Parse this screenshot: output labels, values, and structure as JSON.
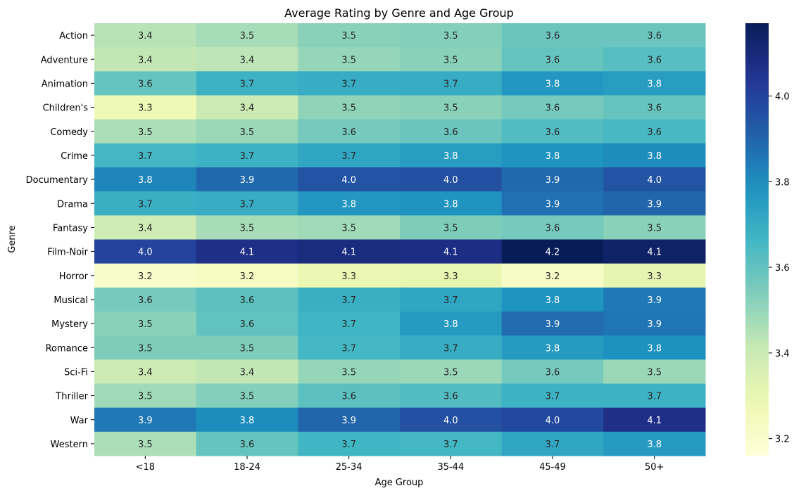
{
  "chart_data": {
    "type": "heatmap",
    "title": "Average Rating by Genre and Age Group",
    "xlabel": "Age Group",
    "ylabel": "Genre",
    "colormap": "YlGnBu",
    "x_categories": [
      "<18",
      "18-24",
      "25-34",
      "35-44",
      "45-49",
      "50+"
    ],
    "y_categories": [
      "Action",
      "Adventure",
      "Animation",
      "Children's",
      "Comedy",
      "Crime",
      "Documentary",
      "Drama",
      "Fantasy",
      "Film-Noir",
      "Horror",
      "Musical",
      "Mystery",
      "Romance",
      "Sci-Fi",
      "Thriller",
      "War",
      "Western"
    ],
    "values": [
      [
        3.44,
        3.47,
        3.52,
        3.53,
        3.58,
        3.58
      ],
      [
        3.42,
        3.43,
        3.5,
        3.52,
        3.59,
        3.62
      ],
      [
        3.59,
        3.68,
        3.7,
        3.7,
        3.77,
        3.75
      ],
      [
        3.27,
        3.4,
        3.51,
        3.52,
        3.56,
        3.59
      ],
      [
        3.46,
        3.49,
        3.56,
        3.58,
        3.63,
        3.65
      ],
      [
        3.66,
        3.68,
        3.72,
        3.75,
        3.78,
        3.8
      ],
      [
        3.82,
        3.89,
        3.95,
        3.96,
        3.89,
        3.95
      ],
      [
        3.69,
        3.7,
        3.77,
        3.78,
        3.87,
        3.9
      ],
      [
        3.39,
        3.47,
        3.48,
        3.54,
        3.56,
        3.52
      ],
      [
        4.0,
        4.07,
        4.09,
        4.08,
        4.17,
        4.14
      ],
      [
        3.21,
        3.23,
        3.29,
        3.3,
        3.22,
        3.31
      ],
      [
        3.56,
        3.61,
        3.69,
        3.72,
        3.78,
        3.85
      ],
      [
        3.52,
        3.6,
        3.67,
        3.76,
        3.88,
        3.86
      ],
      [
        3.54,
        3.54,
        3.66,
        3.7,
        3.76,
        3.79
      ],
      [
        3.4,
        3.42,
        3.5,
        3.49,
        3.56,
        3.49
      ],
      [
        3.48,
        3.53,
        3.61,
        3.63,
        3.68,
        3.68
      ],
      [
        3.85,
        3.8,
        3.9,
        3.96,
        3.98,
        4.07
      ],
      [
        3.46,
        3.59,
        3.67,
        3.66,
        3.72,
        3.76
      ]
    ],
    "value_range": [
      3.16,
      4.17
    ],
    "colorbar_ticks": [
      3.2,
      3.4,
      3.6,
      3.8,
      4.0
    ],
    "annotation_format": "1 decimal"
  }
}
